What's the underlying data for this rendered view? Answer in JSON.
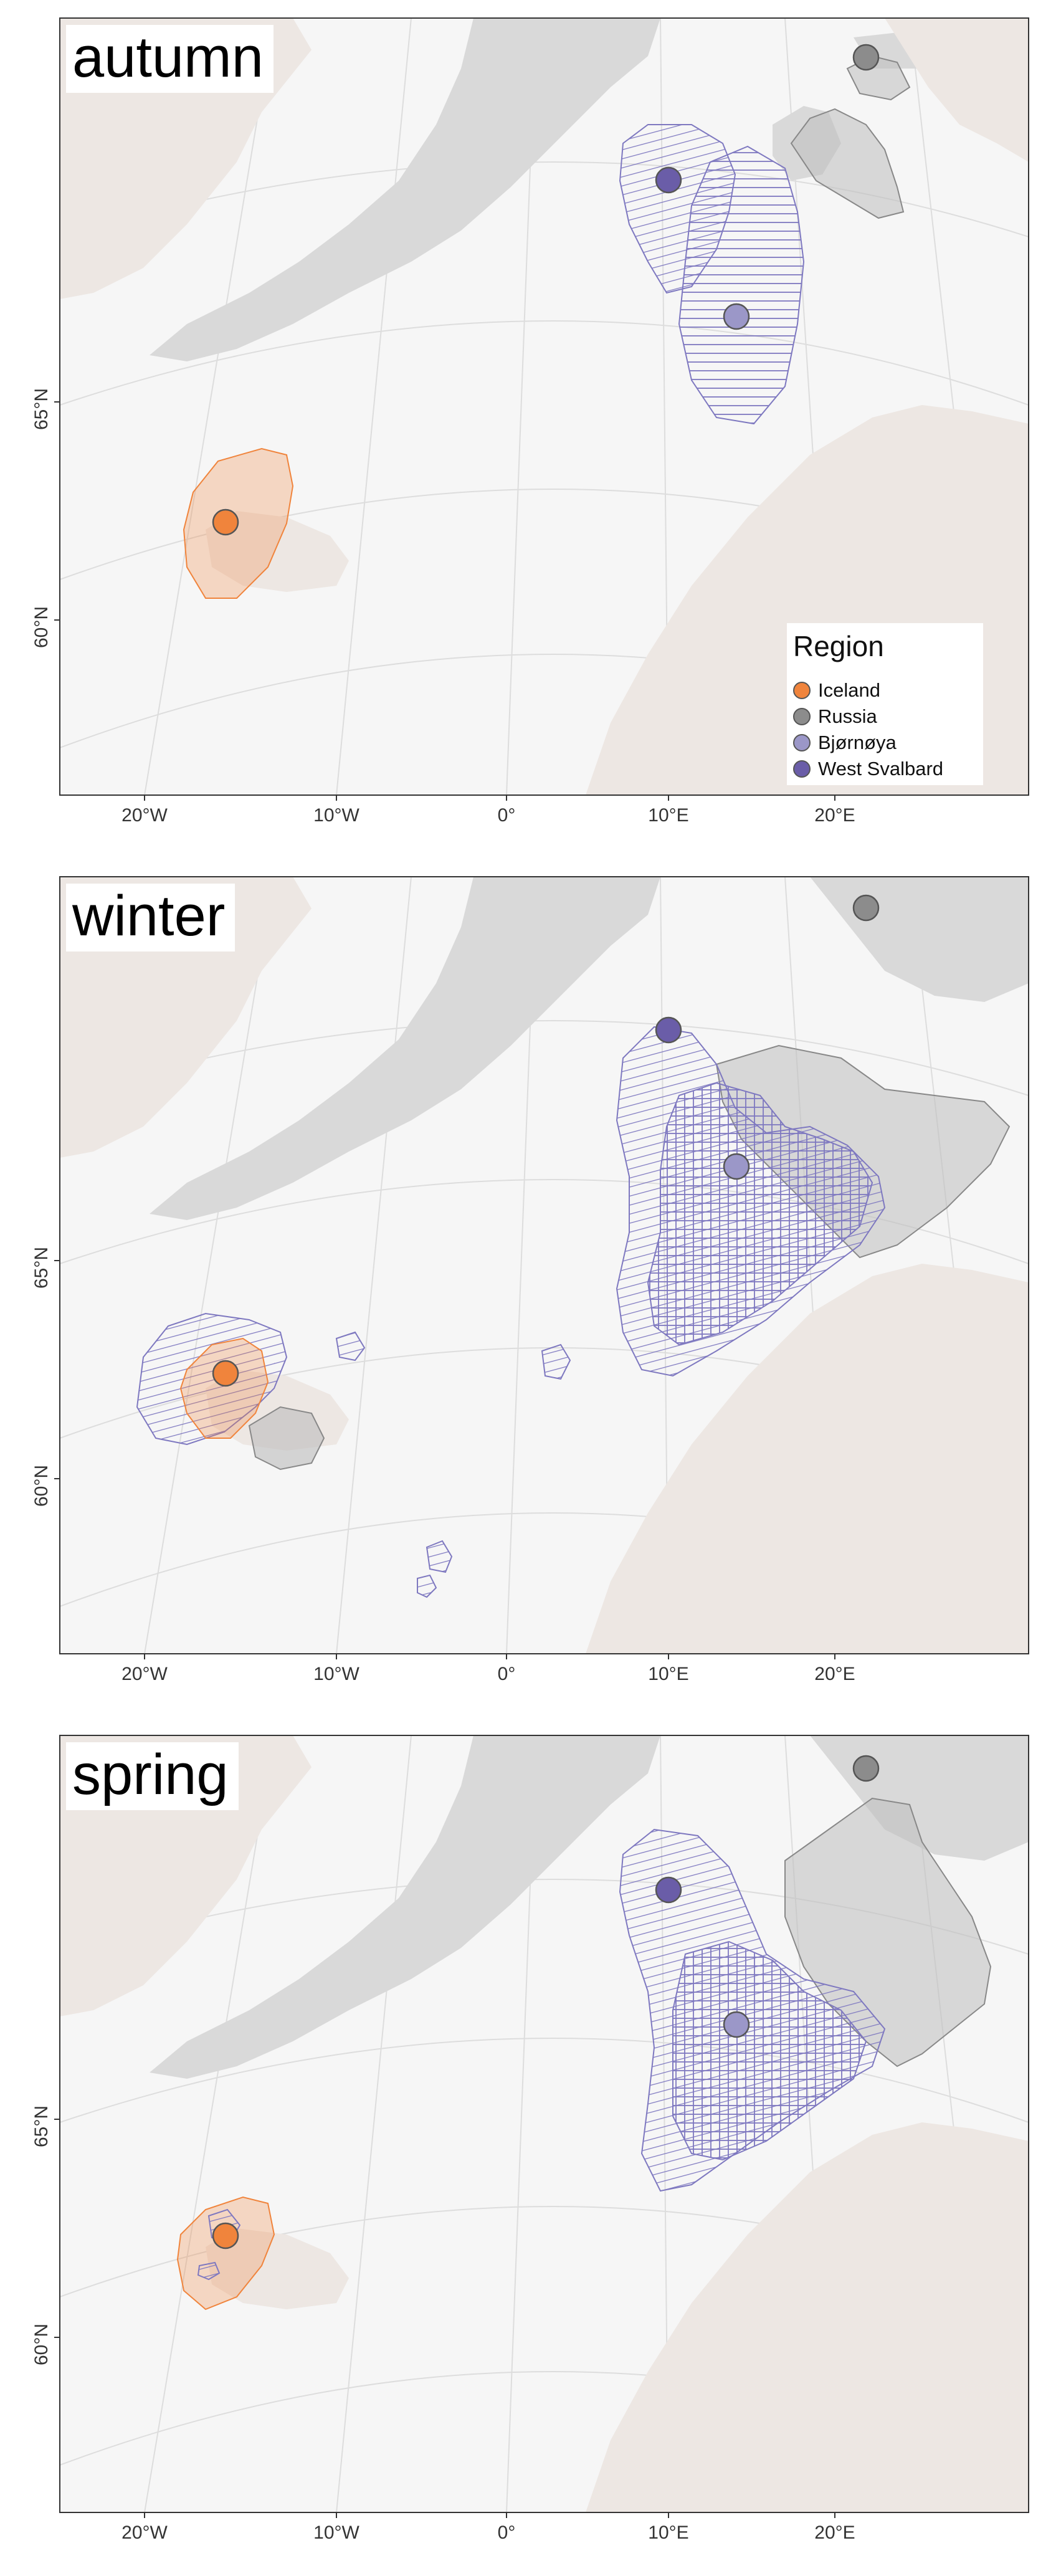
{
  "panels": [
    {
      "label": "autumn"
    },
    {
      "label": "winter"
    },
    {
      "label": "spring"
    }
  ],
  "axes": {
    "lat_labels": [
      "65°N",
      "60°N"
    ],
    "lon_labels": [
      "20°W",
      "10°W",
      "0°",
      "10°E",
      "20°E"
    ]
  },
  "legend": {
    "title": "Region",
    "items": [
      {
        "label": "Iceland",
        "color": "#F0843C"
      },
      {
        "label": "Russia",
        "color": "#8C8C8C"
      },
      {
        "label": "Bjørnøya",
        "color": "#9B97C8"
      },
      {
        "label": "West Svalbard",
        "color": "#6A5DA8"
      }
    ]
  },
  "colors": {
    "ocean": "#F6F6F6",
    "greenland": "#D9D9D9",
    "land": "#EDE7E3",
    "iceland": "#F0843C",
    "russia": "#8C8C8C",
    "bjornoya": "#9B97C8",
    "west_svalbard": "#6A5DA8",
    "hatch": "#7E78C0"
  }
}
